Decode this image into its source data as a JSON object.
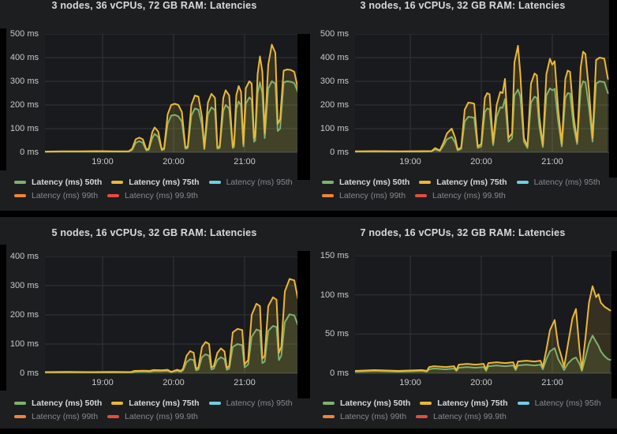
{
  "colors": {
    "p50": "#7EB26D",
    "p75": "#EAB839",
    "p95": "#6ED0E0",
    "p99": "#EF843C",
    "p999": "#E24D42",
    "panel_bg": "#1d1e20",
    "plot_bg": "#191a1d",
    "grid": "#333539",
    "baseline": "#44464a",
    "title_text": "#d8d9da",
    "axis_text": "#c9cacc",
    "legend_active_text": "#d8d9da",
    "legend_inactive_text": "#87898d"
  },
  "legend_items": [
    {
      "label": "Latency (ms) 50th",
      "color_key": "p50",
      "active": true,
      "visible": true,
      "row": 0
    },
    {
      "label": "Latency (ms) 75th",
      "color_key": "p75",
      "active": true,
      "visible": true,
      "row": 0
    },
    {
      "label": "Latency (ms) 95th",
      "color_key": "p95",
      "active": false,
      "visible": false,
      "row": 0
    },
    {
      "label": "Latency (ms) 99th",
      "color_key": "p99",
      "active": false,
      "visible": false,
      "row": 1
    },
    {
      "label": "Latency (ms) 99.9th",
      "color_key": "p999",
      "active": false,
      "visible": false,
      "row": 1
    }
  ],
  "chart_data": [
    {
      "type": "line",
      "title": "3 nodes, 36 vCPUs, 72 GB RAM: Latencies",
      "ylim": [
        0,
        500
      ],
      "y_ticks": [
        "500 ms",
        "400 ms",
        "300 ms",
        "200 ms",
        "100 ms",
        "0 ms"
      ],
      "x_ticks": [
        "19:00",
        "20:00",
        "21:00"
      ],
      "x_tick_minutes_after_1800": [
        60,
        120,
        180
      ],
      "grid": true,
      "legend_position": "bottom",
      "series": [
        {
          "name": "Latency (ms) 50th",
          "color_key": "p50",
          "x": [
            11,
            25,
            40,
            55,
            70,
            82,
            85,
            88,
            91,
            94,
            97,
            99,
            102,
            104,
            107,
            110,
            112,
            115,
            118,
            121,
            124,
            127,
            130,
            132,
            135,
            138,
            141,
            144,
            146,
            149,
            152,
            155,
            157,
            159,
            162,
            164,
            167,
            170,
            171,
            173,
            175,
            177,
            179,
            181,
            184,
            186,
            188,
            189,
            191,
            193,
            195,
            197,
            200,
            203,
            206,
            208,
            210,
            213,
            216,
            219,
            222,
            225
          ],
          "y": [
            2,
            3,
            3,
            3,
            3,
            3,
            10,
            40,
            47,
            40,
            8,
            10,
            60,
            78,
            65,
            9,
            12,
            120,
            155,
            158,
            152,
            130,
            15,
            18,
            155,
            185,
            180,
            115,
            13,
            160,
            190,
            178,
            15,
            18,
            175,
            200,
            185,
            18,
            22,
            185,
            215,
            198,
            25,
            205,
            232,
            222,
            45,
            50,
            250,
            295,
            250,
            60,
            270,
            300,
            290,
            90,
            100,
            295,
            300,
            298,
            292,
            255
          ]
        },
        {
          "name": "Latency (ms) 75th",
          "color_key": "p75",
          "x": [
            11,
            25,
            40,
            55,
            70,
            82,
            85,
            88,
            91,
            94,
            97,
            99,
            102,
            104,
            107,
            110,
            112,
            115,
            118,
            121,
            124,
            127,
            130,
            132,
            135,
            138,
            141,
            144,
            146,
            149,
            152,
            155,
            157,
            159,
            162,
            164,
            167,
            170,
            171,
            173,
            175,
            177,
            179,
            181,
            184,
            186,
            188,
            189,
            191,
            193,
            195,
            197,
            200,
            203,
            206,
            208,
            210,
            213,
            216,
            219,
            222,
            225
          ],
          "y": [
            3,
            4,
            4,
            5,
            4,
            4,
            15,
            55,
            62,
            55,
            12,
            15,
            85,
            105,
            88,
            12,
            18,
            160,
            200,
            205,
            200,
            170,
            20,
            25,
            200,
            240,
            235,
            150,
            18,
            210,
            247,
            230,
            20,
            25,
            230,
            262,
            240,
            25,
            30,
            240,
            280,
            255,
            35,
            270,
            300,
            290,
            60,
            70,
            330,
            405,
            340,
            80,
            370,
            455,
            420,
            120,
            140,
            345,
            350,
            348,
            340,
            270
          ]
        }
      ]
    },
    {
      "type": "line",
      "title": "3 nodes, 16 vCPUs, 32 GB RAM: Latencies",
      "ylim": [
        0,
        500
      ],
      "y_ticks": [
        "500 ms",
        "400 ms",
        "300 ms",
        "200 ms",
        "100 ms",
        "0 ms"
      ],
      "x_ticks": [
        "19:00",
        "20:00",
        "21:00"
      ],
      "x_tick_minutes_after_1800": [
        60,
        120,
        180
      ],
      "grid": true,
      "legend_position": "bottom",
      "series": [
        {
          "name": "Latency (ms) 50th",
          "color_key": "p50",
          "x": [
            13,
            30,
            50,
            70,
            78,
            81,
            85,
            88,
            91,
            95,
            98,
            100,
            103,
            106,
            109,
            112,
            114,
            117,
            120,
            123,
            125,
            127,
            130,
            133,
            136,
            138,
            140,
            143,
            146,
            148,
            151,
            153,
            156,
            159,
            162,
            165,
            167,
            169,
            172,
            175,
            178,
            180,
            182,
            185,
            188,
            191,
            193,
            195,
            198,
            201,
            204,
            206,
            208,
            211,
            214,
            217,
            220,
            222,
            224,
            227
          ],
          "y": [
            3,
            3,
            3,
            3,
            4,
            12,
            6,
            28,
            55,
            65,
            40,
            8,
            14,
            130,
            150,
            148,
            146,
            18,
            25,
            170,
            185,
            182,
            30,
            150,
            190,
            188,
            225,
            45,
            60,
            240,
            265,
            235,
            45,
            18,
            210,
            235,
            230,
            110,
            22,
            240,
            270,
            262,
            268,
            130,
            25,
            230,
            250,
            248,
            110,
            35,
            270,
            300,
            295,
            190,
            45,
            290,
            300,
            298,
            296,
            250
          ]
        },
        {
          "name": "Latency (ms) 75th",
          "color_key": "p75",
          "x": [
            13,
            30,
            50,
            70,
            78,
            81,
            85,
            88,
            91,
            95,
            98,
            100,
            103,
            106,
            109,
            112,
            114,
            117,
            120,
            123,
            125,
            127,
            130,
            133,
            136,
            138,
            140,
            143,
            146,
            148,
            151,
            153,
            156,
            159,
            162,
            165,
            167,
            169,
            172,
            175,
            178,
            180,
            182,
            185,
            188,
            191,
            193,
            195,
            198,
            201,
            204,
            206,
            208,
            211,
            214,
            217,
            220,
            222,
            224,
            227
          ],
          "y": [
            4,
            5,
            4,
            5,
            5,
            18,
            8,
            40,
            80,
            100,
            60,
            12,
            20,
            180,
            210,
            208,
            205,
            25,
            35,
            230,
            250,
            245,
            40,
            200,
            255,
            250,
            310,
            60,
            80,
            380,
            450,
            330,
            60,
            25,
            290,
            333,
            325,
            150,
            30,
            330,
            395,
            370,
            385,
            180,
            35,
            310,
            345,
            340,
            150,
            45,
            360,
            425,
            415,
            260,
            60,
            390,
            400,
            398,
            395,
            310
          ]
        }
      ]
    },
    {
      "type": "line",
      "title": "5 nodes, 16 vCPUs, 32 GB RAM: Latencies",
      "ylim": [
        0,
        400
      ],
      "y_ticks": [
        "400 ms",
        "300 ms",
        "200 ms",
        "100 ms",
        "0 ms"
      ],
      "x_ticks": [
        "19:00",
        "20:00",
        "21:00"
      ],
      "x_tick_minutes_after_1800": [
        60,
        120,
        180
      ],
      "grid": true,
      "legend_position": "bottom",
      "series": [
        {
          "name": "Latency (ms) 50th",
          "color_key": "p50",
          "x": [
            11,
            30,
            50,
            70,
            84,
            87,
            95,
            100,
            103,
            110,
            115,
            118,
            123,
            126,
            128,
            131,
            134,
            137,
            139,
            141,
            144,
            147,
            150,
            152,
            154,
            157,
            160,
            163,
            165,
            167,
            170,
            174,
            178,
            180,
            183,
            186,
            190,
            193,
            195,
            197,
            200,
            204,
            207,
            209,
            211,
            214,
            218,
            222,
            225
          ],
          "y": [
            3,
            3,
            3,
            3,
            3,
            5,
            6,
            5,
            7,
            7,
            8,
            4,
            8,
            5,
            10,
            38,
            48,
            45,
            10,
            13,
            55,
            65,
            60,
            13,
            16,
            45,
            55,
            48,
            12,
            16,
            90,
            100,
            96,
            20,
            30,
            125,
            150,
            145,
            35,
            40,
            145,
            162,
            158,
            45,
            60,
            175,
            202,
            198,
            166
          ]
        },
        {
          "name": "Latency (ms) 75th",
          "color_key": "p75",
          "x": [
            11,
            30,
            50,
            70,
            84,
            87,
            95,
            100,
            103,
            110,
            115,
            118,
            123,
            126,
            128,
            131,
            134,
            137,
            139,
            141,
            144,
            147,
            150,
            152,
            154,
            157,
            160,
            163,
            165,
            167,
            170,
            174,
            178,
            180,
            183,
            186,
            190,
            193,
            195,
            197,
            200,
            204,
            207,
            209,
            211,
            214,
            218,
            222,
            225
          ],
          "y": [
            4,
            5,
            4,
            5,
            4,
            8,
            9,
            8,
            11,
            10,
            12,
            5,
            12,
            8,
            15,
            60,
            76,
            70,
            15,
            20,
            90,
            107,
            100,
            20,
            25,
            70,
            85,
            75,
            18,
            25,
            140,
            152,
            148,
            30,
            45,
            200,
            238,
            230,
            50,
            60,
            230,
            260,
            252,
            70,
            90,
            280,
            323,
            318,
            256
          ]
        }
      ]
    },
    {
      "type": "line",
      "title": "7 nodes, 16 vCPUs, 32 GB RAM: Latencies",
      "ylim": [
        0,
        150
      ],
      "y_ticks": [
        "150 ms",
        "100 ms",
        "50 ms",
        "0 ms"
      ],
      "x_ticks": [
        "19:00",
        "20:00",
        "21:00"
      ],
      "x_tick_minutes_after_1800": [
        60,
        120,
        180
      ],
      "grid": true,
      "legend_position": "bottom",
      "series": [
        {
          "name": "Latency (ms) 50th",
          "color_key": "p50",
          "x": [
            13,
            30,
            50,
            70,
            74,
            76,
            80,
            90,
            97,
            99,
            101,
            108,
            115,
            122,
            124,
            126,
            133,
            140,
            147,
            149,
            151,
            158,
            165,
            170,
            172,
            175,
            178,
            182,
            185,
            188,
            190,
            193,
            197,
            200,
            203,
            205,
            208,
            211,
            214,
            217,
            219,
            221,
            224,
            227,
            229
          ],
          "y": [
            2,
            3,
            2,
            3,
            2,
            5,
            6,
            5,
            6,
            3,
            7,
            8,
            7,
            8,
            3,
            9,
            10,
            9,
            10,
            4,
            10,
            11,
            10,
            11,
            5,
            18,
            28,
            32,
            18,
            10,
            4,
            12,
            18,
            20,
            12,
            3,
            20,
            38,
            48,
            40,
            35,
            28,
            22,
            18,
            17
          ]
        },
        {
          "name": "Latency (ms) 75th",
          "color_key": "p75",
          "x": [
            13,
            30,
            50,
            70,
            74,
            76,
            80,
            90,
            97,
            99,
            101,
            108,
            115,
            122,
            124,
            126,
            133,
            140,
            147,
            149,
            151,
            158,
            165,
            170,
            172,
            175,
            178,
            182,
            185,
            188,
            190,
            193,
            197,
            200,
            203,
            205,
            208,
            211,
            214,
            217,
            219,
            221,
            224,
            227,
            229
          ],
          "y": [
            3,
            4,
            3,
            4,
            3,
            8,
            9,
            8,
            9,
            4,
            11,
            12,
            11,
            12,
            5,
            13,
            14,
            13,
            14,
            6,
            15,
            16,
            15,
            16,
            8,
            30,
            55,
            68,
            35,
            20,
            8,
            35,
            70,
            82,
            30,
            5,
            45,
            90,
            111,
            97,
            101,
            90,
            85,
            82,
            80
          ]
        }
      ]
    }
  ]
}
